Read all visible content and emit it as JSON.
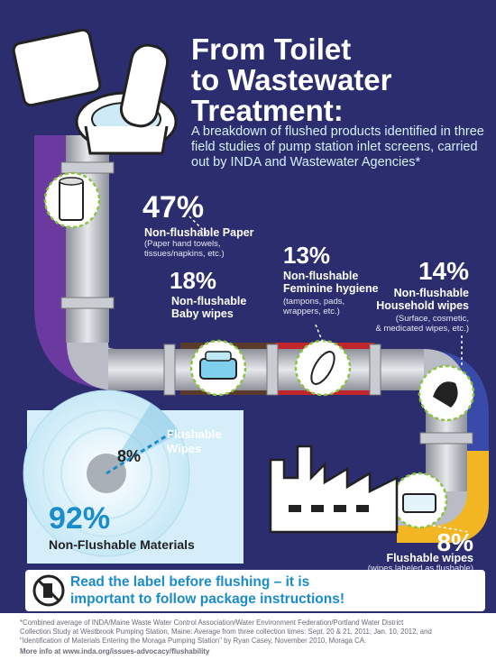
{
  "header": {
    "title_lines": [
      "From Toilet",
      "to Wastewater",
      "Treatment:"
    ],
    "subtitle": "A breakdown of flushed products identified in three field studies of pump station inlet screens, carried out by INDA and Wastewater Agencies*"
  },
  "items": [
    {
      "pct": "47%",
      "label": "Non-flushable Paper",
      "note": "(Paper hand towels, tissues/napkins, etc.)",
      "icon": "paper-towel-roll-icon"
    },
    {
      "pct": "18%",
      "label_lines": [
        "Non-flushable",
        "Baby wipes"
      ],
      "icon": "baby-wipes-container-icon"
    },
    {
      "pct": "13%",
      "label_lines": [
        "Non-flushable",
        "Feminine hygiene"
      ],
      "note_lines": [
        "(tampons, pads,",
        "wrappers, etc.)"
      ],
      "icon": "sanitary-pad-icon"
    },
    {
      "pct": "14%",
      "label_lines": [
        "Non-flushable",
        "Household wipes"
      ],
      "note_lines": [
        "(Surface, cosmetic,",
        "& medicated wipes, etc.)"
      ],
      "icon": "glove-wipe-icon"
    },
    {
      "pct": "8%",
      "label": "Flushable wipes",
      "note": "(wipes labeled as flushable)",
      "icon": "flushable-wipes-box-icon"
    }
  ],
  "chart_data": {
    "type": "pie",
    "categories": [
      "Flushable Wipes",
      "Non-Flushable Materials"
    ],
    "values": [
      8,
      92
    ],
    "labels": {
      "small_pct": "8%",
      "small_label_lines": [
        "Flushable",
        "Wipes"
      ],
      "big_pct": "92%",
      "big_label": "Non-Flushable Materials"
    }
  },
  "callout": {
    "text_lines": [
      "Read the label before flushing – it is",
      "important to follow package instructions!"
    ],
    "icon": "no-flushing-icon"
  },
  "footnote": {
    "lines": [
      "*Combined average of INDA/Maine Waste Water Control Association/Water Environment Federation/Portland Water District",
      "Collection Study at Westbrook Pumping Station, Maine: Average from three collection times: Sept. 20 & 21, 2011; Jan. 10, 2012, and",
      "\"Identification of Materials Entering the Moraga Pumping Station\" by Ryan Casey, November 2010, Moraga CA."
    ],
    "link": "More info at www.inda.org/issues-advocacy/flushability"
  },
  "colors": {
    "background": "#2b2d6e",
    "pipe": "#b9bcc4",
    "band_paper": "#6a3aa0",
    "band_baby": "#5a3a2a",
    "band_feminine": "#c0262c",
    "band_household": "#3a4aa8",
    "band_flushable": "#f2b623",
    "accent_blue": "#1a8ccc"
  }
}
